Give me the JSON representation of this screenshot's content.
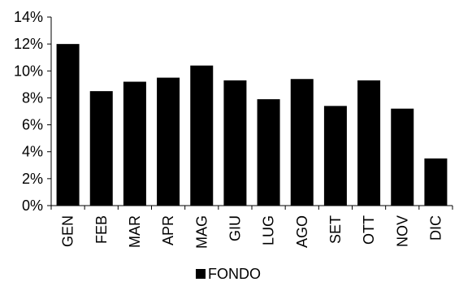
{
  "chart_data": {
    "type": "bar",
    "categories": [
      "GEN",
      "FEB",
      "MAR",
      "APR",
      "MAG",
      "GIU",
      "LUG",
      "AGO",
      "SET",
      "OTT",
      "NOV",
      "DIC"
    ],
    "series": [
      {
        "name": "FONDO",
        "values": [
          12.0,
          8.5,
          9.2,
          9.5,
          10.4,
          9.3,
          7.9,
          9.4,
          7.4,
          9.3,
          7.2,
          3.5
        ]
      }
    ],
    "y_ticks": [
      "0%",
      "2%",
      "4%",
      "6%",
      "8%",
      "10%",
      "12%",
      "14%"
    ],
    "ylim": [
      0,
      14
    ],
    "y_unit": "%",
    "grid": false,
    "legend_position": "bottom-center",
    "colors": {
      "bar": "#000000",
      "axis": "#000000",
      "background": "#ffffff"
    }
  }
}
